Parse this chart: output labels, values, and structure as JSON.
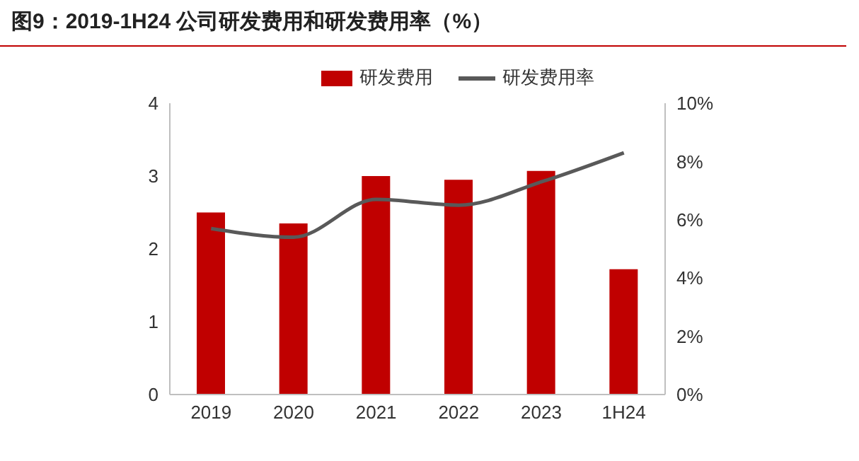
{
  "chart_data": {
    "type": "bar",
    "title": "图9：2019-1H24 公司研发费用和研发费用率（%）",
    "categories": [
      "2019",
      "2020",
      "2021",
      "2022",
      "2023",
      "1H24"
    ],
    "series": [
      {
        "name": "研发费用",
        "color": "#c00000",
        "values": [
          2.5,
          2.35,
          3.0,
          2.95,
          3.07,
          1.72
        ]
      },
      {
        "name": "研发费用率",
        "type": "line",
        "axis": "y2",
        "color": "#595959",
        "values": [
          5.7,
          5.4,
          6.7,
          6.5,
          7.3,
          8.3
        ]
      }
    ],
    "ylim": [
      0,
      4
    ],
    "yticks": [
      0,
      1,
      2,
      3,
      4
    ],
    "y2lim": [
      0,
      10
    ],
    "y2ticks": [
      {
        "value": 0,
        "label": "0%"
      },
      {
        "value": 2,
        "label": "2%"
      },
      {
        "value": 4,
        "label": "4%"
      },
      {
        "value": 6,
        "label": "6%"
      },
      {
        "value": 8,
        "label": "8%"
      },
      {
        "value": 10,
        "label": "10%"
      }
    ],
    "legend": "top",
    "marker": "none"
  }
}
